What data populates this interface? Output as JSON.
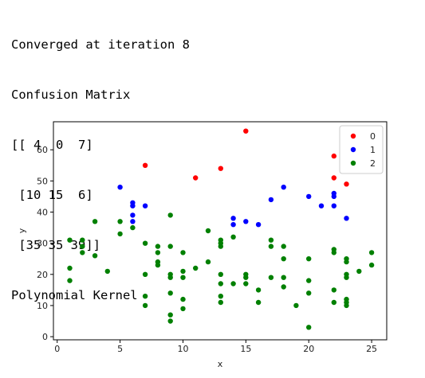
{
  "output_lines": [
    "Converged at iteration 8",
    "Confusion Matrix",
    "[[ 4  0  7]",
    " [10 15  6]",
    " [35 35 39]]",
    "Polynomial Kernel"
  ],
  "chart_data": {
    "type": "scatter",
    "title": "",
    "xlabel": "x",
    "ylabel": "y",
    "xlim": [
      -0.3,
      26.2
    ],
    "ylim": [
      -1,
      69
    ],
    "xticks": [
      0,
      5,
      10,
      15,
      20,
      25
    ],
    "yticks": [
      0,
      10,
      20,
      30,
      40,
      50,
      60
    ],
    "grid": false,
    "legend_position": "upper right",
    "series": [
      {
        "name": "0",
        "color": "#ff0000",
        "points": [
          [
            7,
            55
          ],
          [
            11,
            51
          ],
          [
            13,
            54
          ],
          [
            15,
            66
          ],
          [
            22,
            58
          ],
          [
            22,
            51
          ],
          [
            23,
            49
          ]
        ]
      },
      {
        "name": "1",
        "color": "#0000ff",
        "points": [
          [
            5,
            48
          ],
          [
            6,
            43
          ],
          [
            6,
            42
          ],
          [
            6,
            39
          ],
          [
            6,
            37
          ],
          [
            7,
            42
          ],
          [
            14,
            38
          ],
          [
            14,
            36
          ],
          [
            15,
            37
          ],
          [
            16,
            36
          ],
          [
            17,
            44
          ],
          [
            18,
            48
          ],
          [
            20,
            45
          ],
          [
            21,
            42
          ],
          [
            22,
            46
          ],
          [
            22,
            45
          ],
          [
            22,
            42
          ],
          [
            23,
            38
          ]
        ]
      },
      {
        "name": "2",
        "color": "#008000",
        "points": [
          [
            1,
            31
          ],
          [
            1,
            22
          ],
          [
            1,
            18
          ],
          [
            2,
            31
          ],
          [
            2,
            29
          ],
          [
            2,
            27
          ],
          [
            3,
            37
          ],
          [
            3,
            26
          ],
          [
            4,
            21
          ],
          [
            5,
            37
          ],
          [
            5,
            33
          ],
          [
            6,
            35
          ],
          [
            7,
            30
          ],
          [
            7,
            20
          ],
          [
            7,
            13
          ],
          [
            7,
            10
          ],
          [
            8,
            29
          ],
          [
            8,
            27
          ],
          [
            8,
            24
          ],
          [
            8,
            23
          ],
          [
            9,
            39
          ],
          [
            9,
            29
          ],
          [
            9,
            20
          ],
          [
            9,
            19
          ],
          [
            9,
            14
          ],
          [
            9,
            7
          ],
          [
            9,
            5
          ],
          [
            10,
            27
          ],
          [
            10,
            21
          ],
          [
            10,
            19
          ],
          [
            10,
            12
          ],
          [
            10,
            9
          ],
          [
            11,
            22
          ],
          [
            12,
            34
          ],
          [
            12,
            24
          ],
          [
            13,
            31
          ],
          [
            13,
            30
          ],
          [
            13,
            29
          ],
          [
            13,
            20
          ],
          [
            13,
            17
          ],
          [
            13,
            13
          ],
          [
            13,
            11
          ],
          [
            14,
            32
          ],
          [
            14,
            17
          ],
          [
            15,
            20
          ],
          [
            15,
            19
          ],
          [
            15,
            17
          ],
          [
            16,
            15
          ],
          [
            16,
            11
          ],
          [
            17,
            31
          ],
          [
            17,
            29
          ],
          [
            17,
            19
          ],
          [
            18,
            29
          ],
          [
            18,
            25
          ],
          [
            18,
            19
          ],
          [
            18,
            16
          ],
          [
            19,
            10
          ],
          [
            20,
            25
          ],
          [
            20,
            18
          ],
          [
            20,
            14
          ],
          [
            20,
            3
          ],
          [
            22,
            28
          ],
          [
            22,
            27
          ],
          [
            22,
            15
          ],
          [
            22,
            11
          ],
          [
            23,
            25
          ],
          [
            23,
            24
          ],
          [
            23,
            20
          ],
          [
            23,
            19
          ],
          [
            23,
            12
          ],
          [
            23,
            11
          ],
          [
            23,
            10
          ],
          [
            24,
            21
          ],
          [
            25,
            27
          ],
          [
            25,
            23
          ]
        ]
      }
    ]
  }
}
